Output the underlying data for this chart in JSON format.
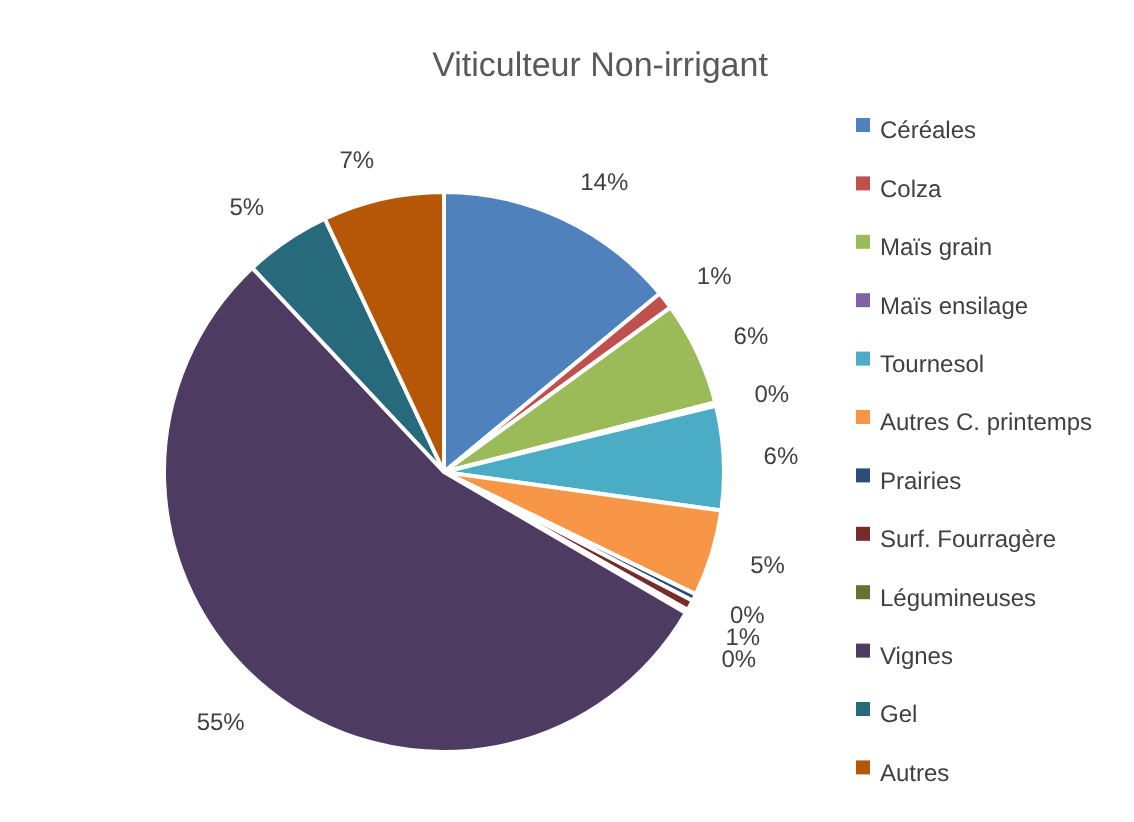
{
  "chart_data": {
    "type": "pie",
    "title": "Viticulteur Non-irrigant",
    "categories": [
      "Céréales",
      "Colza",
      "Maïs grain",
      "Maïs ensilage",
      "Tournesol",
      "Autres C. printemps",
      "Prairies",
      "Surf. Fourragère",
      "Légumineuses",
      "Vignes",
      "Gel",
      "Autres"
    ],
    "values": [
      14,
      1,
      6,
      0.2,
      6,
      5,
      0.4,
      0.6,
      0.2,
      54.6,
      5,
      7
    ],
    "value_labels": [
      "14%",
      "1%",
      "6%",
      "0%",
      "6%",
      "5%",
      "0%",
      "1%",
      "0%",
      "55%",
      "5%",
      "7%"
    ],
    "colors": [
      "#4f81bd",
      "#c0504d",
      "#9bbb59",
      "#8064a2",
      "#4bacc6",
      "#f79646",
      "#2c4d75",
      "#772c2a",
      "#5f7530",
      "#4d3b62",
      "#276a7c",
      "#b65708"
    ],
    "legend": "right"
  }
}
